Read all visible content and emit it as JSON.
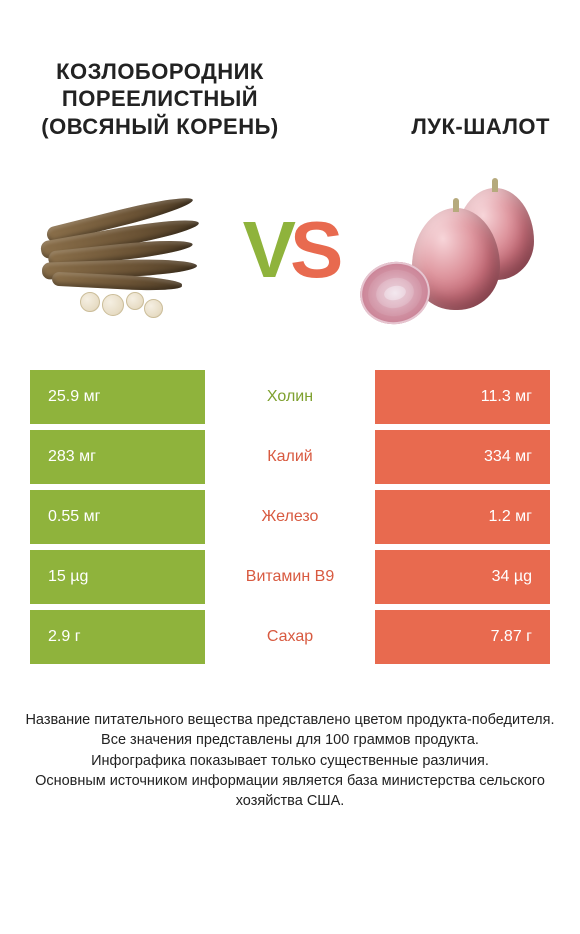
{
  "colors": {
    "left": "#8fb33c",
    "right": "#e86a4f",
    "left_dark": "#7ea02e",
    "right_dark": "#d85a40"
  },
  "header": {
    "left_title": "КОЗЛОБОРОДНИК ПОРЕЕЛИСТНЫЙ (ОВСЯНЫЙ КОРЕНЬ)",
    "right_title": "ЛУК-ШАЛОТ",
    "vs_v": "V",
    "vs_s": "S"
  },
  "rows": [
    {
      "left": "25.9 мг",
      "label": "Холин",
      "right": "11.3 мг",
      "winner": "left"
    },
    {
      "left": "283 мг",
      "label": "Калий",
      "right": "334 мг",
      "winner": "right"
    },
    {
      "left": "0.55 мг",
      "label": "Железо",
      "right": "1.2 мг",
      "winner": "right"
    },
    {
      "left": "15 µg",
      "label": "Витамин B9",
      "right": "34 µg",
      "winner": "right"
    },
    {
      "left": "2.9 г",
      "label": "Сахар",
      "right": "7.87 г",
      "winner": "right"
    }
  ],
  "footer": {
    "l1": "Название питательного вещества представлено цветом продукта-победителя.",
    "l2": "Все значения представлены для 100 граммов продукта.",
    "l3": "Инфографика показывает только существенные различия.",
    "l4": "Основным источником информации является база министерства сельского хозяйства США."
  }
}
